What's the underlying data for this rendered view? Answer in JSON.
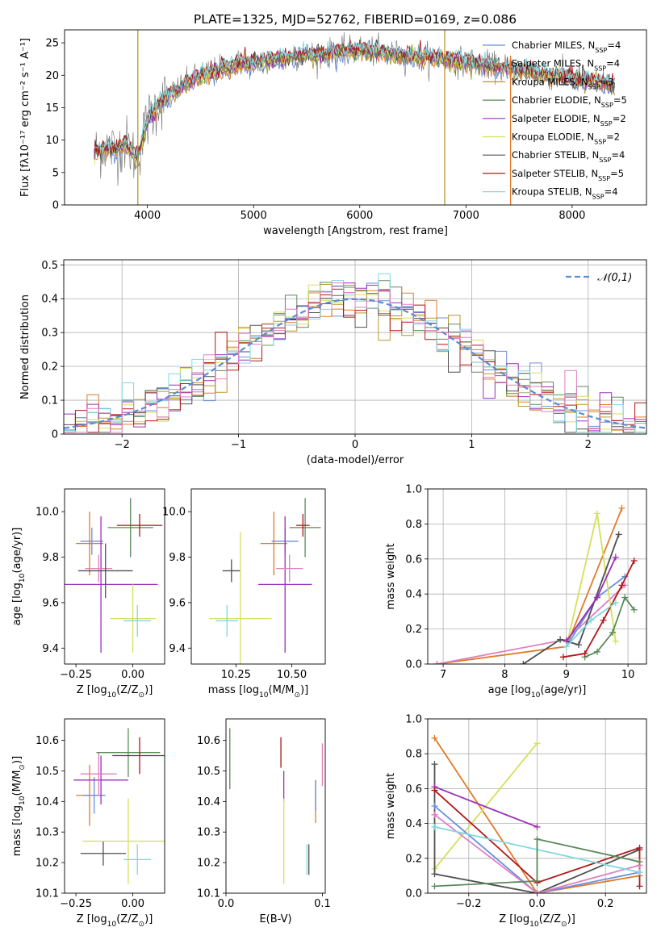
{
  "chart_data": [
    {
      "type": "line",
      "title": "PLATE=1325, MJD=52762, FIBERID=0169, z=0.086",
      "xlabel": "wavelength [Angstrom, rest frame]",
      "ylabel": "Flux [fλ10⁻¹⁷ erg cm⁻² s⁻¹ A⁻¹]",
      "xlim": [
        3220,
        8700
      ],
      "ylim": [
        0,
        27
      ],
      "xticks": [
        4000,
        5000,
        6000,
        7000,
        8000
      ],
      "yticks": [
        0,
        5,
        10,
        15,
        20,
        25
      ],
      "legend_position": "top-right",
      "continuum": {
        "x": [
          3500,
          3600,
          3700,
          3800,
          3900,
          4000,
          4100,
          4200,
          4300,
          4400,
          4500,
          4600,
          4700,
          4800,
          4900,
          5000,
          5200,
          5400,
          5600,
          5800,
          6000,
          6200,
          6400,
          6600,
          6800,
          7000,
          7200,
          7400,
          7600,
          7800,
          8000,
          8200,
          8400
        ],
        "y": [
          8,
          9,
          8.5,
          9.5,
          7,
          13,
          15.5,
          17,
          18,
          19,
          20,
          20.5,
          21,
          21.5,
          22,
          21.8,
          22.5,
          23,
          23.2,
          23.5,
          24,
          23.5,
          23,
          22.8,
          22.5,
          22,
          21.5,
          21,
          20.5,
          20,
          19.5,
          19,
          18.5
        ]
      },
      "series": [
        {
          "name": "Chabrier MILES, N$_{SSP}$=4",
          "color": "#6a8ee0"
        },
        {
          "name": "Salpeter MILES, N$_{SSP}$=4",
          "color": "#e07b28"
        },
        {
          "name": "Kroupa MILES, N$_{SSP}$=3",
          "color": "#b8962e"
        },
        {
          "name": "Chabrier ELODIE, N$_{SSP}$=5",
          "color": "#5a8a5a"
        },
        {
          "name": "Salpeter ELODIE, N$_{SSP}$=2",
          "color": "#9b30b8"
        },
        {
          "name": "Kroupa ELODIE, N$_{SSP}$=2",
          "color": "#d4e05a"
        },
        {
          "name": "Chabrier STELIB, N$_{SSP}$=4",
          "color": "#505050"
        },
        {
          "name": "Salpeter STELIB, N$_{SSP}$=5",
          "color": "#b01818"
        },
        {
          "name": "Kroupa STELIB, N$_{SSP}$=4",
          "color": "#80d8e0"
        }
      ],
      "spikes": [
        {
          "x": 3910,
          "y": 27,
          "color": "#b8962e"
        },
        {
          "x": 6800,
          "y": 27,
          "color": "#b8962e"
        },
        {
          "x": 7420,
          "y": 23,
          "color": "#e07b28"
        }
      ]
    },
    {
      "type": "histogram",
      "xlabel": "(data-model)/error",
      "ylabel": "Normed distribution",
      "xlim": [
        -2.5,
        2.5
      ],
      "ylim": [
        0,
        0.515
      ],
      "xticks": [
        -2,
        -1,
        0,
        1,
        2
      ],
      "yticks": [
        0.0,
        0.1,
        0.2,
        0.3,
        0.4,
        0.5
      ],
      "grid": true,
      "legend_position": "top-right",
      "reference_curve": {
        "name": "$\\mathcal{N}(0,1)$",
        "color": "#5b8ad6",
        "style": "dashed"
      },
      "bin_width": 0.1,
      "bin_start": -2.5,
      "series_colors": [
        "#6a8ee0",
        "#e07b28",
        "#b8962e",
        "#5a8a5a",
        "#9b30b8",
        "#d4e05a",
        "#505050",
        "#b01818",
        "#80d8e0",
        "#e080c0"
      ]
    },
    {
      "type": "scatter",
      "xlabel": "Z [log$_{10}$($Z/Z_\\odot$)]",
      "ylabel": "age  [log$_{10}$($age/yr$)]",
      "xlim": [
        -0.3,
        0.14
      ],
      "ylim": [
        9.33,
        10.1
      ],
      "xticks": [
        "-0.25",
        "0.00"
      ],
      "yticks": [
        "9.4",
        "9.6",
        "9.8",
        "10.0"
      ],
      "errorbars": [
        {
          "x": -0.18,
          "y": 9.87,
          "xerr": 0.05,
          "yerr": 0.06,
          "color": "#6a8ee0"
        },
        {
          "x": -0.19,
          "y": 9.86,
          "xerr": 0.06,
          "yerr": 0.14,
          "color": "#e07b28"
        },
        {
          "x": -0.14,
          "y": 9.68,
          "xerr": 0.25,
          "yerr": 0.3,
          "color": "#9b30b8"
        },
        {
          "x": -0.15,
          "y": 9.75,
          "xerr": 0.06,
          "yerr": 0.06,
          "color": "#e080c0"
        },
        {
          "x": -0.12,
          "y": 9.74,
          "xerr": 0.12,
          "yerr": 0.12,
          "color": "#505050"
        },
        {
          "x": 0.0,
          "y": 9.53,
          "xerr": 0.1,
          "yerr": 0.15,
          "color": "#d4e05a"
        },
        {
          "x": 0.02,
          "y": 9.52,
          "xerr": 0.06,
          "yerr": 0.07,
          "color": "#80d8e0"
        },
        {
          "x": -0.01,
          "y": 9.93,
          "xerr": 0.1,
          "yerr": 0.13,
          "color": "#5a8a5a"
        },
        {
          "x": 0.03,
          "y": 9.94,
          "xerr": 0.1,
          "yerr": 0.05,
          "color": "#b01818"
        }
      ]
    },
    {
      "type": "scatter",
      "xlabel": "mass [log$_{10}$($M/M_\\odot$)]",
      "ylabel": "",
      "xlim": [
        10.05,
        10.65
      ],
      "ylim": [
        9.33,
        10.1
      ],
      "xticks": [
        "10.25",
        "10.50"
      ],
      "yticks": [
        "9.4",
        "9.6",
        "9.8",
        "10.0"
      ],
      "errorbars": [
        {
          "x": 10.47,
          "y": 9.87,
          "xerr": 0.06,
          "yerr": 0.06,
          "color": "#6a8ee0"
        },
        {
          "x": 10.42,
          "y": 9.86,
          "xerr": 0.06,
          "yerr": 0.14,
          "color": "#e07b28"
        },
        {
          "x": 10.47,
          "y": 9.68,
          "xerr": 0.12,
          "yerr": 0.3,
          "color": "#9b30b8"
        },
        {
          "x": 10.49,
          "y": 9.75,
          "xerr": 0.06,
          "yerr": 0.06,
          "color": "#e080c0"
        },
        {
          "x": 10.23,
          "y": 9.74,
          "xerr": 0.04,
          "yerr": 0.05,
          "color": "#505050"
        },
        {
          "x": 10.27,
          "y": 9.53,
          "xerr": 0.14,
          "yerr": 0.38,
          "color": "#d4e05a"
        },
        {
          "x": 10.21,
          "y": 9.52,
          "xerr": 0.05,
          "yerr": 0.07,
          "color": "#80d8e0"
        },
        {
          "x": 10.56,
          "y": 9.93,
          "xerr": 0.07,
          "yerr": 0.13,
          "color": "#5a8a5a"
        },
        {
          "x": 10.55,
          "y": 9.94,
          "xerr": 0.03,
          "yerr": 0.05,
          "color": "#b01818"
        }
      ]
    },
    {
      "type": "line",
      "xlabel": "age  [log$_{10}$($age/yr$)]",
      "ylabel": "mass weight",
      "xlim": [
        6.75,
        10.3
      ],
      "ylim": [
        0,
        1.0
      ],
      "xticks": [
        "7",
        "8",
        "9",
        "10"
      ],
      "yticks": [
        "0.0",
        "0.2",
        "0.4",
        "0.6",
        "0.8",
        "1.0"
      ],
      "grid": true,
      "series": [
        {
          "color": "#e07b28",
          "points": [
            [
              6.9,
              0.0
            ],
            [
              9.0,
              0.1
            ],
            [
              9.9,
              0.89
            ]
          ]
        },
        {
          "color": "#e080c0",
          "points": [
            [
              6.9,
              0.0
            ],
            [
              9.0,
              0.14
            ],
            [
              9.95,
              0.45
            ]
          ]
        },
        {
          "color": "#6a8ee0",
          "points": [
            [
              9.0,
              0.1
            ],
            [
              9.5,
              0.38
            ],
            [
              9.95,
              0.5
            ]
          ]
        },
        {
          "color": "#d4e05a",
          "points": [
            [
              9.0,
              0.1
            ],
            [
              9.5,
              0.86
            ],
            [
              9.8,
              0.13
            ]
          ]
        },
        {
          "color": "#505050",
          "points": [
            [
              8.3,
              0.0
            ],
            [
              8.9,
              0.14
            ],
            [
              9.2,
              0.11
            ],
            [
              9.85,
              0.74
            ]
          ]
        },
        {
          "color": "#9b30b8",
          "points": [
            [
              9.0,
              0.13
            ],
            [
              9.5,
              0.38
            ],
            [
              9.8,
              0.61
            ]
          ]
        },
        {
          "color": "#5a8a5a",
          "points": [
            [
              9.3,
              0.04
            ],
            [
              9.5,
              0.07
            ],
            [
              9.75,
              0.18
            ],
            [
              9.95,
              0.38
            ],
            [
              10.1,
              0.31
            ]
          ]
        },
        {
          "color": "#b01818",
          "points": [
            [
              8.95,
              0.04
            ],
            [
              9.3,
              0.06
            ],
            [
              9.6,
              0.25
            ],
            [
              9.9,
              0.45
            ],
            [
              10.1,
              0.59
            ]
          ]
        },
        {
          "color": "#80d8e0",
          "points": [
            [
              9.0,
              0.1
            ],
            [
              9.4,
              0.25
            ],
            [
              9.8,
              0.35
            ]
          ]
        }
      ]
    },
    {
      "type": "scatter",
      "xlabel": "Z [log$_{10}$($Z/Z_\\odot$)]",
      "ylabel": "mass [log$_{10}$($M/M_\\odot$)]",
      "xlim": [
        -0.3,
        0.14
      ],
      "ylim": [
        10.1,
        10.67
      ],
      "xticks": [
        "-0.25",
        "0.00"
      ],
      "yticks": [
        "10.1",
        "10.2",
        "10.3",
        "10.4",
        "10.5",
        "10.6"
      ],
      "errorbars": [
        {
          "x": -0.19,
          "y": 10.42,
          "xerr": 0.06,
          "yerr": 0.1,
          "color": "#e07b28"
        },
        {
          "x": -0.17,
          "y": 10.42,
          "xerr": 0.05,
          "yerr": 0.06,
          "color": "#6a8ee0"
        },
        {
          "x": -0.14,
          "y": 10.47,
          "xerr": 0.12,
          "yerr": 0.08,
          "color": "#9b30b8"
        },
        {
          "x": -0.15,
          "y": 10.49,
          "xerr": 0.08,
          "yerr": 0.07,
          "color": "#e080c0"
        },
        {
          "x": -0.13,
          "y": 10.23,
          "xerr": 0.1,
          "yerr": 0.04,
          "color": "#505050"
        },
        {
          "x": -0.02,
          "y": 10.27,
          "xerr": 0.2,
          "yerr": 0.14,
          "color": "#d4e05a"
        },
        {
          "x": 0.02,
          "y": 10.21,
          "xerr": 0.06,
          "yerr": 0.05,
          "color": "#80d8e0"
        },
        {
          "x": -0.02,
          "y": 10.56,
          "xerr": 0.14,
          "yerr": 0.08,
          "color": "#5a8a5a"
        },
        {
          "x": 0.03,
          "y": 10.55,
          "xerr": 0.12,
          "yerr": 0.06,
          "color": "#b01818"
        }
      ]
    },
    {
      "type": "scatter",
      "xlabel": "E(B-V)",
      "ylabel": "",
      "xlim": [
        0.0,
        0.103
      ],
      "ylim": [
        10.1,
        10.67
      ],
      "xticks": [
        "0.0",
        "0.1"
      ],
      "yticks": [
        "10.1",
        "10.2",
        "10.3",
        "10.4",
        "10.5",
        "10.6"
      ],
      "errorbars": [
        {
          "x": 0.004,
          "y": 10.54,
          "yerr": 0.1,
          "color": "#5a8a5a"
        },
        {
          "x": 0.057,
          "y": 10.56,
          "yerr": 0.05,
          "color": "#b01818"
        },
        {
          "x": 0.06,
          "y": 10.45,
          "yerr": 0.05,
          "color": "#9b30b8"
        },
        {
          "x": 0.06,
          "y": 10.27,
          "yerr": 0.14,
          "color": "#d4e05a"
        },
        {
          "x": 0.084,
          "y": 10.21,
          "yerr": 0.05,
          "color": "#80d8e0"
        },
        {
          "x": 0.086,
          "y": 10.21,
          "yerr": 0.05,
          "color": "#505050"
        },
        {
          "x": 0.093,
          "y": 10.4,
          "yerr": 0.07,
          "color": "#e07b28"
        },
        {
          "x": 0.093,
          "y": 10.42,
          "yerr": 0.05,
          "color": "#6a8ee0"
        },
        {
          "x": 0.1,
          "y": 10.52,
          "yerr": 0.07,
          "color": "#e080c0"
        }
      ]
    },
    {
      "type": "line",
      "xlabel": "Z [log$_{10}$($Z/Z_\\odot$)]",
      "ylabel": "mass weight",
      "xlim": [
        -0.32,
        0.32
      ],
      "ylim": [
        0,
        1.0
      ],
      "xticks": [
        "-0.2",
        "0.0",
        "0.2"
      ],
      "yticks": [
        "0.0",
        "0.2",
        "0.4",
        "0.6",
        "0.8",
        "1.0"
      ],
      "grid": true,
      "series": [
        {
          "color": "#e07b28",
          "points": [
            [
              -0.3,
              0.89
            ],
            [
              0.0,
              0.0
            ],
            [
              0.3,
              0.1
            ]
          ]
        },
        {
          "color": "#d4e05a",
          "points": [
            [
              -0.3,
              0.14
            ],
            [
              0.0,
              0.86
            ]
          ]
        },
        {
          "color": "#505050",
          "points": [
            [
              -0.3,
              0.74
            ],
            [
              -0.3,
              0.11
            ],
            [
              0.0,
              0.0
            ],
            [
              0.3,
              0.25
            ]
          ]
        },
        {
          "color": "#9b30b8",
          "points": [
            [
              -0.3,
              0.61
            ],
            [
              0.0,
              0.38
            ]
          ]
        },
        {
          "color": "#b01818",
          "points": [
            [
              -0.3,
              0.59
            ],
            [
              0.0,
              0.06
            ],
            [
              0.3,
              0.26
            ],
            [
              0.3,
              0.04
            ]
          ]
        },
        {
          "color": "#6a8ee0",
          "points": [
            [
              -0.3,
              0.5
            ],
            [
              0.0,
              0.0
            ],
            [
              0.3,
              0.12
            ]
          ]
        },
        {
          "color": "#e080c0",
          "points": [
            [
              -0.3,
              0.45
            ],
            [
              0.0,
              0.0
            ],
            [
              0.3,
              0.16
            ]
          ]
        },
        {
          "color": "#80d8e0",
          "points": [
            [
              -0.3,
              0.38
            ],
            [
              0.3,
              0.12
            ]
          ]
        },
        {
          "color": "#5a8a5a",
          "points": [
            [
              -0.3,
              0.04
            ],
            [
              0.0,
              0.07
            ],
            [
              0.0,
              0.31
            ],
            [
              0.3,
              0.18
            ]
          ]
        }
      ]
    }
  ]
}
